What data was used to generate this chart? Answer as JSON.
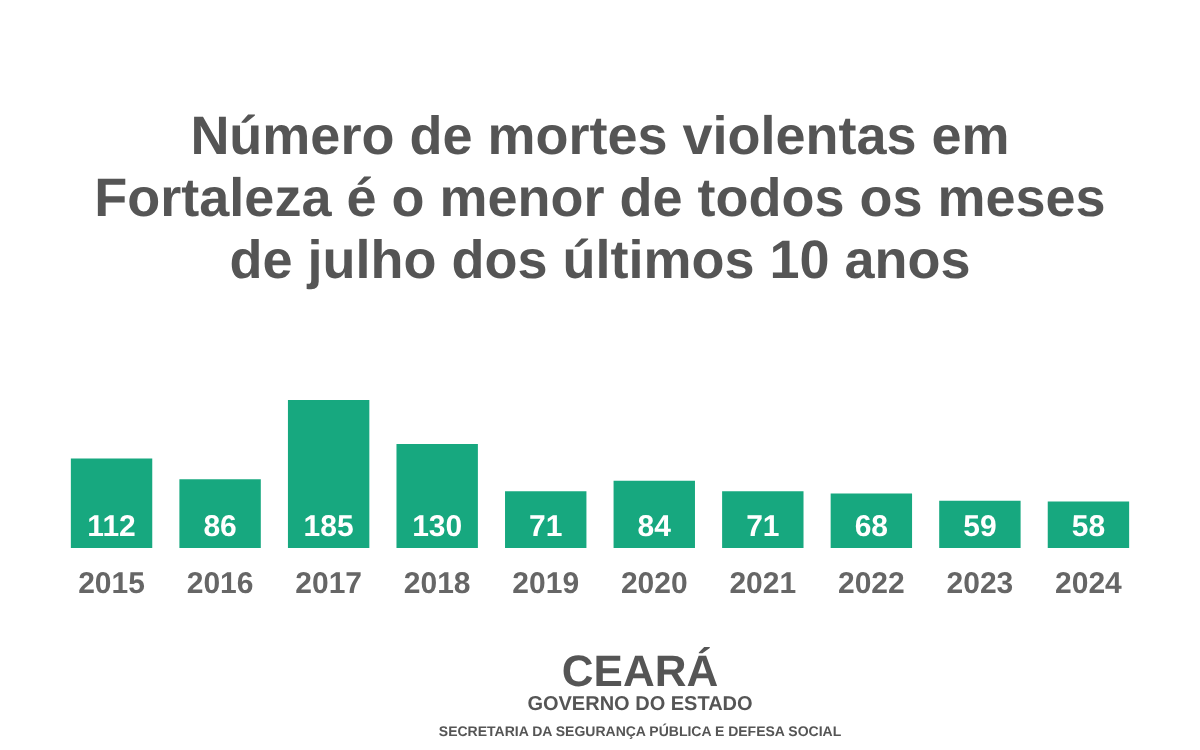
{
  "chart_data": {
    "type": "bar",
    "title": "Número de mortes violentas em Fortaleza é o menor de todos os meses de julho dos últimos 10 anos",
    "categories": [
      "2015",
      "2016",
      "2017",
      "2018",
      "2019",
      "2020",
      "2021",
      "2022",
      "2023",
      "2024"
    ],
    "values": [
      112,
      86,
      185,
      130,
      71,
      84,
      71,
      68,
      59,
      58
    ],
    "color": "#17a87f",
    "data_labels": true,
    "annotations": [
      "CEARÁ",
      "GOVERNO DO ESTADO",
      "SECRETARIA DA SEGURANÇA PÚBLICA E DEFESA SOCIAL"
    ]
  }
}
